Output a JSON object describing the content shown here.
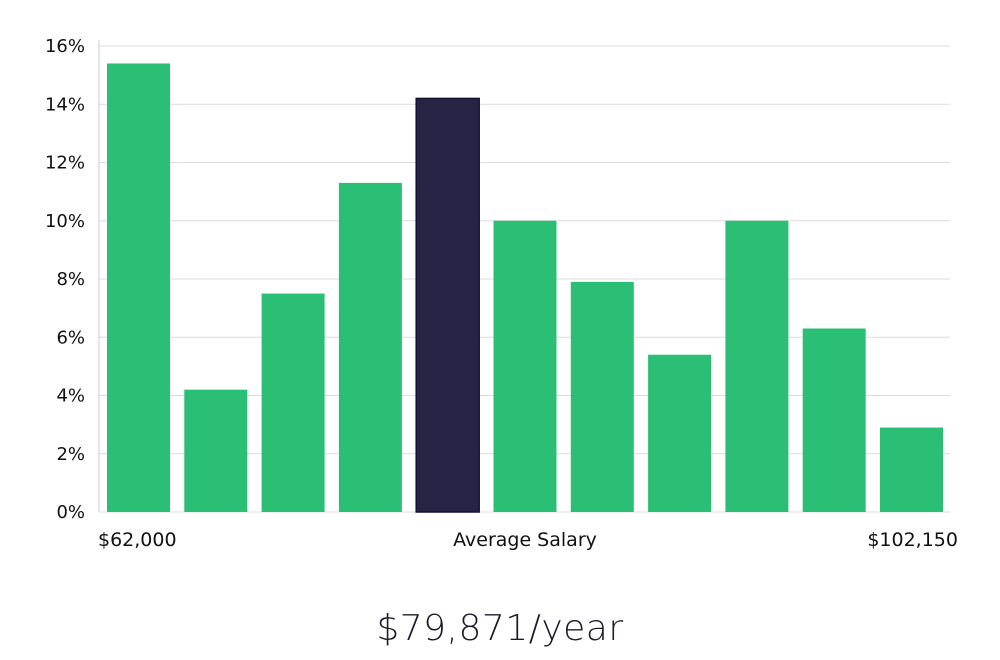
{
  "chart_data": {
    "type": "bar",
    "values": [
      15.4,
      4.2,
      7.5,
      11.3,
      14.2,
      10.0,
      7.9,
      5.4,
      10.0,
      6.3,
      2.9
    ],
    "highlight_index": 4,
    "y_ticks": [
      "0%",
      "2%",
      "4%",
      "6%",
      "8%",
      "10%",
      "12%",
      "14%",
      "16%"
    ],
    "ylim": [
      0,
      16
    ],
    "grid": true,
    "x_min_label": "$62,000",
    "x_center_label": "Average Salary",
    "x_max_label": "$102,150",
    "colors": {
      "bar": "#2bbf76",
      "bar_highlight": "#272345",
      "bar_highlight_border": "#151230"
    }
  },
  "caption": "$79,871/year"
}
